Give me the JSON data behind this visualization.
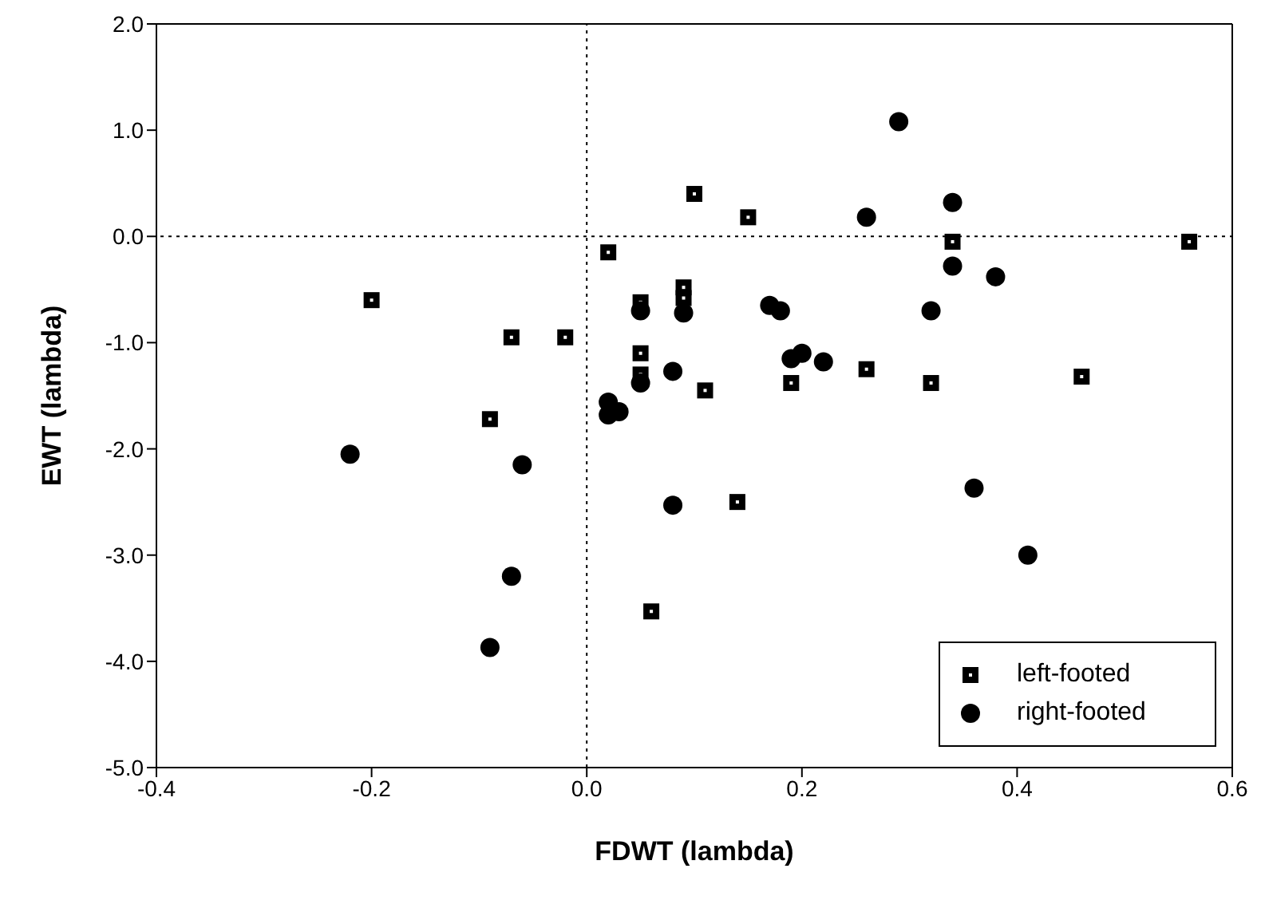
{
  "chart_data": {
    "type": "scatter",
    "xlabel": "FDWT (lambda)",
    "ylabel": "EWT (lambda)",
    "xlim": [
      -0.4,
      0.6
    ],
    "xticks": [
      {
        "value": -0.4,
        "label": "-0.4"
      },
      {
        "value": -0.2,
        "label": "-0.2"
      },
      {
        "value": 0,
        "label": "0.0"
      },
      {
        "value": 0.2,
        "label": "0.2"
      },
      {
        "value": 0.4,
        "label": "0.4"
      },
      {
        "value": 0.6,
        "label": "0.6"
      }
    ],
    "ylim": [
      -5,
      2
    ],
    "yticks": [
      {
        "value": -5,
        "label": "-5.0"
      },
      {
        "value": -4,
        "label": "-4.0"
      },
      {
        "value": -3,
        "label": "-3.0"
      },
      {
        "value": -2,
        "label": "-2.0"
      },
      {
        "value": -1,
        "label": "-1.0"
      },
      {
        "value": 0,
        "label": "0.0"
      },
      {
        "value": 1,
        "label": "1.0"
      },
      {
        "value": 2,
        "label": "2.0"
      }
    ],
    "grid": false,
    "legend": "bottom right",
    "ref_lines": [
      {
        "axis": "x",
        "value": 0,
        "line_style": "dotted",
        "color": "#000000"
      },
      {
        "axis": "y",
        "value": 0,
        "line_style": "dotted",
        "color": "#000000"
      }
    ],
    "series": [
      {
        "name": "left-footed",
        "color": "#000000",
        "marker": "square",
        "x": [
          -0.2,
          -0.07,
          -0.02,
          -0.09,
          0.02,
          0.1,
          0.15,
          0.05,
          0.09,
          0.09,
          0.05,
          0.05,
          0.11,
          0.19,
          0.26,
          0.32,
          0.34,
          0.46,
          0.56,
          0.14,
          0.06
        ],
        "values": [
          -0.6,
          -0.95,
          -0.95,
          -1.72,
          -0.15,
          0.4,
          0.18,
          -0.62,
          -0.48,
          -0.58,
          -1.1,
          -1.3,
          -1.45,
          -1.38,
          -1.25,
          -1.38,
          -0.05,
          -1.32,
          -0.05,
          -2.5,
          -3.53
        ]
      },
      {
        "name": "right-footed",
        "color": "#000000",
        "marker": "circle",
        "x": [
          0.29,
          0.26,
          0.34,
          0.34,
          0.38,
          0.17,
          0.18,
          0.32,
          0.05,
          0.09,
          0.05,
          0.08,
          0.19,
          0.2,
          0.22,
          0.02,
          0.02,
          0.03,
          -0.22,
          -0.06,
          0.08,
          0.36,
          0.41,
          -0.07,
          -0.09
        ],
        "values": [
          1.08,
          0.18,
          0.32,
          -0.28,
          -0.38,
          -0.65,
          -0.7,
          -0.7,
          -0.7,
          -0.72,
          -1.38,
          -1.27,
          -1.15,
          -1.1,
          -1.18,
          -1.56,
          -1.68,
          -1.65,
          -2.05,
          -2.15,
          -2.53,
          -2.37,
          -3.0,
          -3.2,
          -3.87
        ]
      }
    ]
  }
}
